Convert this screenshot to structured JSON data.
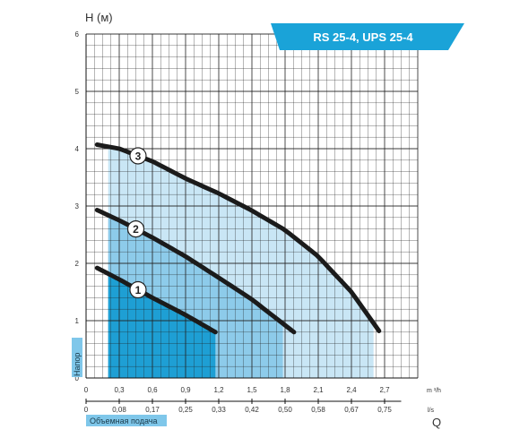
{
  "chart_data": {
    "type": "line",
    "title": "RS 25-4, UPS 25-4",
    "ylabel": "H (м)",
    "y_side_label": "Напор",
    "ylim": [
      0,
      6
    ],
    "y_ticks": [
      "0",
      "1",
      "2",
      "3",
      "4",
      "5",
      "6"
    ],
    "x_unit_primary": "m ³/h",
    "xlim_primary": [
      0,
      3.0
    ],
    "x_ticks_primary": [
      "0",
      "0,3",
      "0,6",
      "0,9",
      "1,2",
      "1,5",
      "1,8",
      "2,1",
      "2,4",
      "2,7"
    ],
    "x_unit_secondary": "l/s",
    "x_ticks_secondary": [
      "0",
      "0,08",
      "0,17",
      "0,25",
      "0,33",
      "0,42",
      "0,50",
      "0,58",
      "0,67",
      "0,75"
    ],
    "x_symbol": "Q",
    "x_side_label": "Объемная подача",
    "grid": true,
    "colors": {
      "banner": "#1aa3d8",
      "band_dark": "#1e9fd4",
      "band_mid": "#8dcbea",
      "band_light": "#c9e6f5",
      "curve": "#1b1b1b",
      "grid": "#222222"
    },
    "series": [
      {
        "name": "1",
        "x": [
          0.1,
          0.3,
          0.6,
          0.9,
          1.17
        ],
        "y": [
          1.92,
          1.72,
          1.4,
          1.1,
          0.8
        ]
      },
      {
        "name": "2",
        "x": [
          0.1,
          0.3,
          0.6,
          0.9,
          1.2,
          1.5,
          1.88
        ],
        "y": [
          2.93,
          2.75,
          2.45,
          2.12,
          1.75,
          1.37,
          0.8
        ]
      },
      {
        "name": "3",
        "x": [
          0.1,
          0.3,
          0.6,
          0.9,
          1.2,
          1.5,
          1.8,
          2.1,
          2.4,
          2.65
        ],
        "y": [
          4.07,
          4.0,
          3.78,
          3.48,
          3.22,
          2.92,
          2.58,
          2.12,
          1.5,
          0.82
        ]
      }
    ],
    "working_regions": [
      {
        "series": "1",
        "q_start": 0.2,
        "q_end": 1.17
      },
      {
        "series": "2",
        "q_start": 0.2,
        "q_end": 1.78
      },
      {
        "series": "3",
        "q_start": 0.2,
        "q_end": 2.6
      }
    ]
  }
}
